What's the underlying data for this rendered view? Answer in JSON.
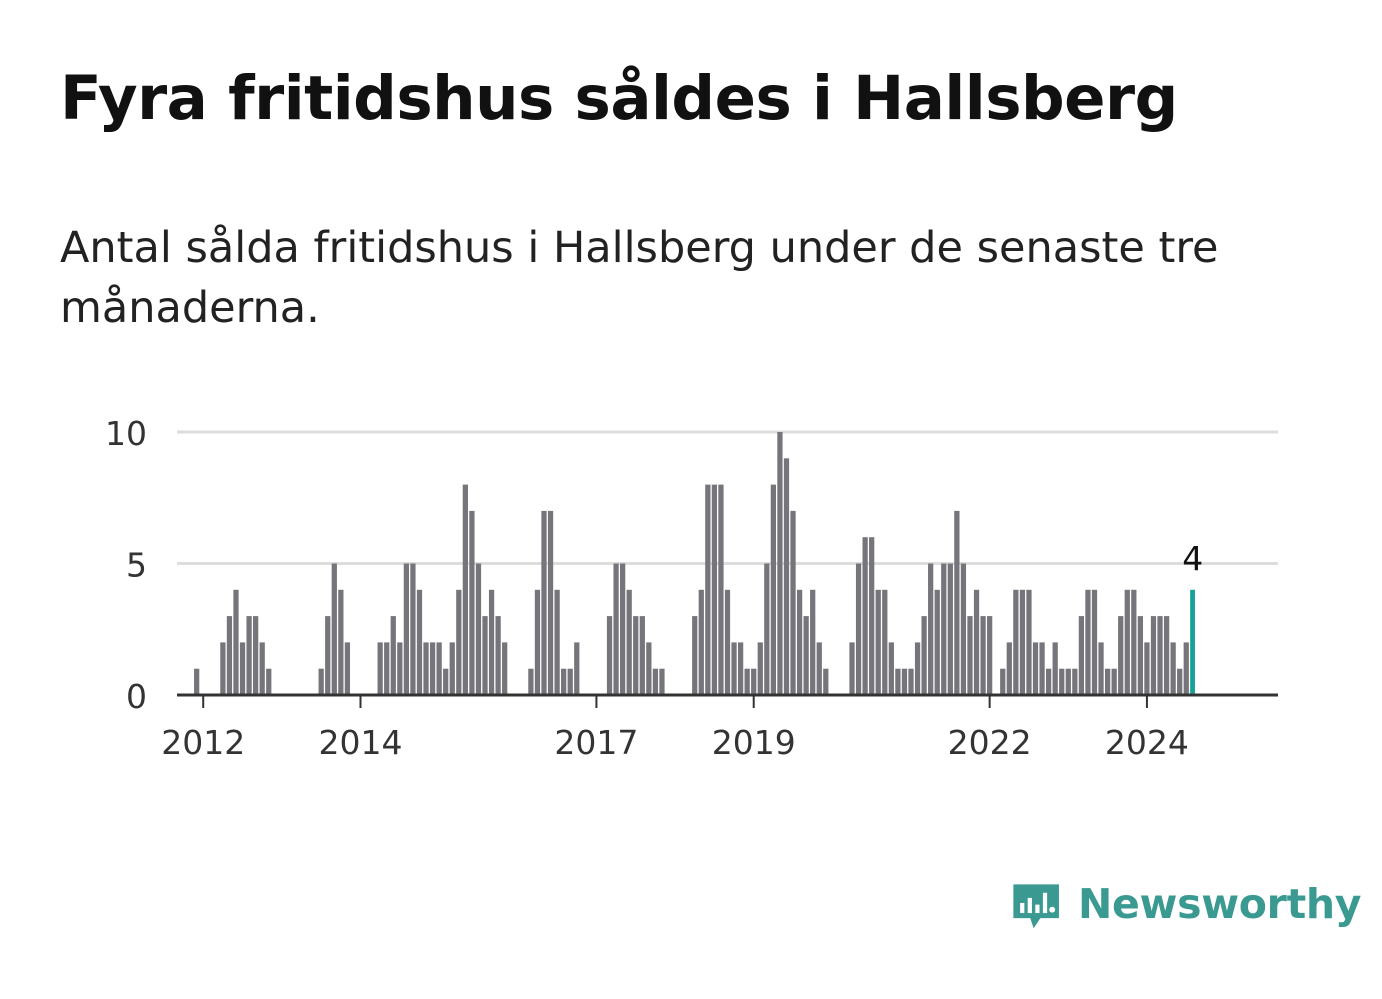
{
  "title": "Fyra fritidshus såldes i Hallsberg",
  "subtitle": "Antal sålda fritidshus i Hallsberg under de senaste tre månaderna.",
  "brand": {
    "name": "Newsworthy",
    "color": "#3a9a91"
  },
  "colors": {
    "bar": "#76757b",
    "highlight": "#16a096",
    "grid": "#dddddd",
    "axis": "#333333"
  },
  "chart_data": {
    "type": "bar",
    "title": "Fyra fritidshus såldes i Hallsberg",
    "subtitle": "Antal sålda fritidshus i Hallsberg under de senaste tre månaderna.",
    "xlabel": "",
    "ylabel": "",
    "ylim": [
      0,
      10
    ],
    "yticks": [
      0,
      5,
      10
    ],
    "xtick_labels": [
      "2012",
      "2014",
      "2017",
      "2019",
      "2022",
      "2024"
    ],
    "xlim": [
      "2011-09",
      "2025-09"
    ],
    "grid": true,
    "highlight": {
      "date": "2024-08",
      "value": 4,
      "label": "4"
    },
    "series": [
      {
        "dates": [
          "2011-12",
          "2012-01",
          "2012-02",
          "2012-03",
          "2012-04",
          "2012-05",
          "2012-06",
          "2012-07",
          "2012-08",
          "2012-09",
          "2012-10",
          "2012-11",
          "2012-12",
          "2013-01",
          "2013-02",
          "2013-03",
          "2013-04",
          "2013-05",
          "2013-06",
          "2013-07",
          "2013-08",
          "2013-09",
          "2013-10",
          "2013-11",
          "2013-12",
          "2014-01",
          "2014-02",
          "2014-03",
          "2014-04",
          "2014-05",
          "2014-06",
          "2014-07",
          "2014-08",
          "2014-09",
          "2014-10",
          "2014-11",
          "2014-12",
          "2015-01",
          "2015-02",
          "2015-03",
          "2015-04",
          "2015-05",
          "2015-06",
          "2015-07",
          "2015-08",
          "2015-09",
          "2015-10",
          "2015-11",
          "2015-12",
          "2016-01",
          "2016-02",
          "2016-03",
          "2016-04",
          "2016-05",
          "2016-06",
          "2016-07",
          "2016-08",
          "2016-09",
          "2016-10",
          "2016-11",
          "2016-12",
          "2017-01",
          "2017-02",
          "2017-03",
          "2017-04",
          "2017-05",
          "2017-06",
          "2017-07",
          "2017-08",
          "2017-09",
          "2017-10",
          "2017-11",
          "2017-12",
          "2018-01",
          "2018-02",
          "2018-03",
          "2018-04",
          "2018-05",
          "2018-06",
          "2018-07",
          "2018-08",
          "2018-09",
          "2018-10",
          "2018-11",
          "2018-12",
          "2019-01",
          "2019-02",
          "2019-03",
          "2019-04",
          "2019-05",
          "2019-06",
          "2019-07",
          "2019-08",
          "2019-09",
          "2019-10",
          "2019-11",
          "2019-12",
          "2020-01",
          "2020-02",
          "2020-03",
          "2020-04",
          "2020-05",
          "2020-06",
          "2020-07",
          "2020-08",
          "2020-09",
          "2020-10",
          "2020-11",
          "2020-12",
          "2021-01",
          "2021-02",
          "2021-03",
          "2021-04",
          "2021-05",
          "2021-06",
          "2021-07",
          "2021-08",
          "2021-09",
          "2021-10",
          "2021-11",
          "2021-12",
          "2022-01",
          "2022-02",
          "2022-03",
          "2022-04",
          "2022-05",
          "2022-06",
          "2022-07",
          "2022-08",
          "2022-09",
          "2022-10",
          "2022-11",
          "2022-12",
          "2023-01",
          "2023-02",
          "2023-03",
          "2023-04",
          "2023-05",
          "2023-06",
          "2023-07",
          "2023-08",
          "2023-09",
          "2023-10",
          "2023-11",
          "2023-12",
          "2024-01",
          "2024-02",
          "2024-03",
          "2024-04",
          "2024-05",
          "2024-06",
          "2024-07",
          "2024-08"
        ],
        "values": [
          1,
          0,
          0,
          0,
          2,
          3,
          4,
          2,
          3,
          3,
          2,
          1,
          0,
          0,
          0,
          0,
          0,
          0,
          0,
          1,
          3,
          5,
          4,
          2,
          0,
          0,
          0,
          0,
          2,
          2,
          3,
          2,
          5,
          5,
          4,
          2,
          2,
          2,
          1,
          2,
          4,
          8,
          7,
          5,
          3,
          4,
          3,
          2,
          0,
          0,
          0,
          1,
          4,
          7,
          7,
          4,
          1,
          1,
          2,
          0,
          0,
          0,
          0,
          3,
          5,
          5,
          4,
          3,
          3,
          2,
          1,
          1,
          0,
          0,
          0,
          0,
          3,
          4,
          8,
          8,
          8,
          4,
          2,
          2,
          1,
          1,
          2,
          5,
          8,
          10,
          9,
          7,
          4,
          3,
          4,
          2,
          1,
          0,
          0,
          0,
          2,
          5,
          6,
          6,
          4,
          4,
          2,
          1,
          1,
          1,
          2,
          3,
          5,
          4,
          5,
          5,
          7,
          5,
          3,
          4,
          3,
          3,
          0,
          1,
          2,
          4,
          4,
          4,
          2,
          2,
          1,
          2,
          1,
          1,
          1,
          3,
          4,
          4,
          2,
          1,
          1,
          3,
          4,
          4,
          3,
          2,
          3,
          3,
          3,
          2,
          1,
          2,
          4
        ]
      }
    ]
  }
}
